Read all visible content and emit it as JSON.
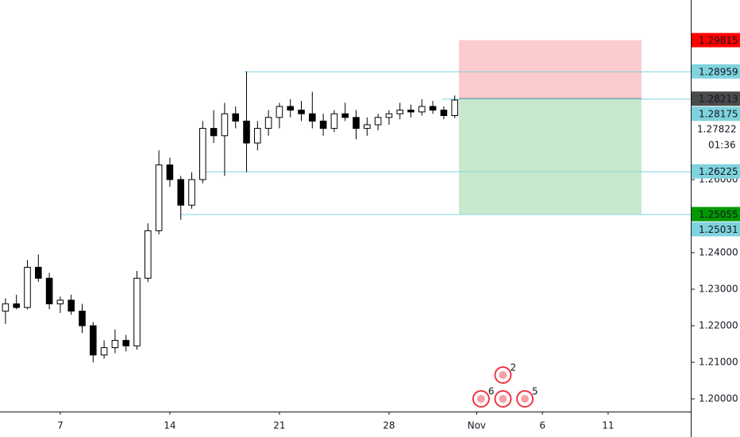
{
  "chart_data": {
    "type": "candlestick",
    "x": [
      -2.5,
      -2,
      -1.5,
      -1,
      -0.5,
      0,
      0.5,
      1,
      1.5,
      2,
      2.5,
      3,
      3.5,
      4,
      4.5,
      5,
      5.5,
      6,
      6.5,
      7,
      7.5,
      8,
      8.5,
      9,
      9.5,
      10,
      10.5,
      11,
      11.5,
      12,
      12.5,
      13,
      13.5,
      14,
      14.5,
      15,
      15.5,
      16,
      16.5,
      17,
      17.5,
      18
    ],
    "open": [
      1.224,
      1.226,
      1.225,
      1.236,
      1.233,
      1.226,
      1.227,
      1.224,
      1.22,
      1.212,
      1.214,
      1.216,
      1.2145,
      1.233,
      1.246,
      1.264,
      1.26,
      1.253,
      1.26,
      1.274,
      1.272,
      1.278,
      1.276,
      1.27,
      1.274,
      1.277,
      1.28,
      1.279,
      1.278,
      1.276,
      1.274,
      1.278,
      1.277,
      1.274,
      1.275,
      1.277,
      1.278,
      1.279,
      1.2785,
      1.28,
      1.279,
      1.2775
    ],
    "high": [
      1.2275,
      1.2285,
      1.238,
      1.2395,
      1.2345,
      1.228,
      1.2285,
      1.226,
      1.221,
      1.216,
      1.219,
      1.2175,
      1.235,
      1.248,
      1.268,
      1.266,
      1.261,
      1.262,
      1.276,
      1.279,
      1.281,
      1.28,
      1.2896,
      1.276,
      1.279,
      1.281,
      1.282,
      1.2815,
      1.284,
      1.278,
      1.279,
      1.281,
      1.279,
      1.277,
      1.278,
      1.279,
      1.281,
      1.2805,
      1.282,
      1.2815,
      1.28,
      1.283
    ],
    "low": [
      1.2205,
      1.2245,
      1.2245,
      1.232,
      1.2245,
      1.2235,
      1.223,
      1.218,
      1.21,
      1.211,
      1.2125,
      1.213,
      1.2135,
      1.232,
      1.245,
      1.258,
      1.249,
      1.252,
      1.259,
      1.27,
      1.261,
      1.274,
      1.262,
      1.268,
      1.272,
      1.274,
      1.277,
      1.276,
      1.274,
      1.272,
      1.273,
      1.276,
      1.271,
      1.272,
      1.2735,
      1.275,
      1.2765,
      1.277,
      1.2775,
      1.278,
      1.2765,
      1.2768
    ],
    "close": [
      1.226,
      1.225,
      1.236,
      1.233,
      1.226,
      1.227,
      1.224,
      1.22,
      1.212,
      1.214,
      1.216,
      1.2145,
      1.233,
      1.246,
      1.264,
      1.26,
      1.253,
      1.26,
      1.274,
      1.272,
      1.278,
      1.276,
      1.27,
      1.274,
      1.277,
      1.28,
      1.279,
      1.278,
      1.276,
      1.274,
      1.278,
      1.277,
      1.274,
      1.275,
      1.277,
      1.278,
      1.279,
      1.2785,
      1.28,
      1.279,
      1.2775,
      1.28175
    ],
    "up_color": "#ffffff",
    "down_color": "#000000",
    "wick_color": "#000000",
    "xlim": [
      -2.75,
      28.77
    ],
    "xticks": [
      {
        "value": 0,
        "label": "7"
      },
      {
        "value": 5,
        "label": "14"
      },
      {
        "value": 10,
        "label": "21"
      },
      {
        "value": 15,
        "label": "28"
      },
      {
        "value": 19,
        "label": "Nov"
      },
      {
        "value": 22,
        "label": "6"
      },
      {
        "value": 25,
        "label": "11"
      }
    ],
    "ylim": [
      1.19652,
      1.30913
    ],
    "yticks": [
      {
        "value": 1.2,
        "label": "1.20000"
      },
      {
        "value": 1.21,
        "label": "1.21000"
      },
      {
        "value": 1.22,
        "label": "1.22000"
      },
      {
        "value": 1.23,
        "label": "1.23000"
      },
      {
        "value": 1.24,
        "label": "1.24000"
      },
      {
        "value": 1.26,
        "label": "1.26000"
      }
    ],
    "levels": [
      {
        "price": 1.28959,
        "start_x": 8.4
      },
      {
        "price": 1.28213,
        "start_x": 17.4
      },
      {
        "price": 1.26225,
        "start_x": 6.3
      },
      {
        "price": 1.25055,
        "start_x": 5.5
      }
    ],
    "level_color": "#7fd3dc",
    "position": {
      "stop": 1.29815,
      "entry": 1.28213,
      "target": 1.25055,
      "x_start": 18.19,
      "x_end": 26.52,
      "stop_color": "#fccbcd",
      "target_color": "#c8e9cb",
      "entry_color": "#787b86"
    },
    "price_labels": [
      {
        "value": 1.29815,
        "label": "1.29815",
        "color": "#ff0000"
      },
      {
        "value": 1.28959,
        "label": "1.28959",
        "color": "#7fd3dc"
      },
      {
        "value": 1.28213,
        "label": "1.28213",
        "color": "#4a4a4a"
      },
      {
        "value": 1.28175,
        "label": "1.28175",
        "color": "#7fd3dc"
      },
      {
        "value": 1.27822,
        "label": "1.27822"
      },
      {
        "label": "01:36"
      },
      {
        "value": 1.26225,
        "label": "1.26225",
        "color": "#7fd3dc"
      },
      {
        "value": 1.25055,
        "label": "1.25055",
        "color": "#009900"
      },
      {
        "value": 1.25031,
        "label": "1.25031",
        "color": "#7fd3dc"
      }
    ],
    "events": [
      {
        "x": 19.2,
        "label": "6"
      },
      {
        "x": 20.2
      },
      {
        "x": 20.2,
        "label": "2"
      },
      {
        "x": 21.2,
        "label": "5"
      }
    ]
  }
}
